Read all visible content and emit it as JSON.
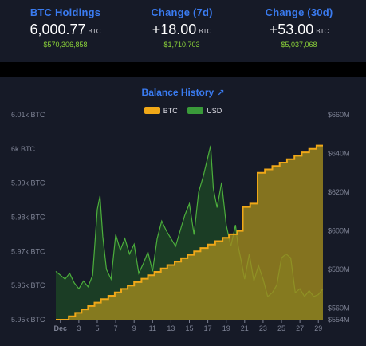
{
  "stats": [
    {
      "label": "BTC Holdings",
      "value": "6,000.77",
      "unit": "BTC",
      "usd": "$570,306,858"
    },
    {
      "label": "Change (7d)",
      "value": "+18.00",
      "unit": "BTC",
      "usd": "$1,710,703"
    },
    {
      "label": "Change (30d)",
      "value": "+53.00",
      "unit": "BTC",
      "usd": "$5,037,068"
    }
  ],
  "chart_data": {
    "type": "area",
    "title": "Balance History",
    "title_icon": "external-link-icon",
    "legend": [
      {
        "name": "BTC",
        "color": "#f0a818"
      },
      {
        "name": "USD",
        "color": "#3a9a3a"
      }
    ],
    "x_ticks": [
      "Dec",
      "3",
      "5",
      "7",
      "9",
      "11",
      "13",
      "15",
      "17",
      "19",
      "21",
      "23",
      "25",
      "27",
      "29"
    ],
    "x_tick_days": [
      1,
      3,
      5,
      7,
      9,
      11,
      13,
      15,
      17,
      19,
      21,
      23,
      25,
      27,
      29
    ],
    "x_range": [
      0.5,
      29.5
    ],
    "left_axis": {
      "ticks": [
        "6.01k BTC",
        "6k BTC",
        "5.99k BTC",
        "5.98k BTC",
        "5.97k BTC",
        "5.96k BTC",
        "5.95k BTC"
      ],
      "tick_values": [
        6010,
        6000,
        5990,
        5980,
        5970,
        5960,
        5950
      ],
      "range": [
        5950,
        6010
      ]
    },
    "right_axis": {
      "ticks": [
        "$660M",
        "$640M",
        "$620M",
        "$600M",
        "$580M",
        "$560M",
        "$554M"
      ],
      "tick_values": [
        660,
        640,
        620,
        600,
        580,
        560,
        554
      ],
      "range": [
        554,
        660
      ]
    },
    "series": [
      {
        "name": "BTC",
        "axis": "left",
        "color": "#f0a818",
        "fill": "#a08a1e",
        "points": [
          [
            0.5,
            5950
          ],
          [
            1.9,
            5950
          ],
          [
            1.9,
            5951
          ],
          [
            2.6,
            5951
          ],
          [
            2.6,
            5952
          ],
          [
            3.3,
            5952
          ],
          [
            3.3,
            5953
          ],
          [
            4.0,
            5953
          ],
          [
            4.0,
            5954
          ],
          [
            4.7,
            5954
          ],
          [
            4.7,
            5955
          ],
          [
            5.4,
            5955
          ],
          [
            5.4,
            5956
          ],
          [
            6.2,
            5956
          ],
          [
            6.2,
            5957
          ],
          [
            6.9,
            5957
          ],
          [
            6.9,
            5958
          ],
          [
            7.6,
            5958
          ],
          [
            7.6,
            5959
          ],
          [
            8.3,
            5959
          ],
          [
            8.3,
            5960
          ],
          [
            9.0,
            5960
          ],
          [
            9.0,
            5961
          ],
          [
            9.8,
            5961
          ],
          [
            9.8,
            5962
          ],
          [
            10.5,
            5962
          ],
          [
            10.5,
            5963
          ],
          [
            11.2,
            5963
          ],
          [
            11.2,
            5964
          ],
          [
            11.9,
            5964
          ],
          [
            11.9,
            5965
          ],
          [
            12.6,
            5965
          ],
          [
            12.6,
            5966
          ],
          [
            13.4,
            5966
          ],
          [
            13.4,
            5967
          ],
          [
            14.1,
            5967
          ],
          [
            14.1,
            5968
          ],
          [
            14.8,
            5968
          ],
          [
            14.8,
            5969
          ],
          [
            15.5,
            5969
          ],
          [
            15.5,
            5970
          ],
          [
            16.2,
            5970
          ],
          [
            16.2,
            5971
          ],
          [
            17.0,
            5971
          ],
          [
            17.0,
            5972
          ],
          [
            17.8,
            5972
          ],
          [
            17.8,
            5973
          ],
          [
            18.6,
            5973
          ],
          [
            18.6,
            5974
          ],
          [
            19.3,
            5974
          ],
          [
            19.3,
            5975
          ],
          [
            20.2,
            5975
          ],
          [
            20.2,
            5976
          ],
          [
            20.8,
            5976
          ],
          [
            20.8,
            5983
          ],
          [
            21.6,
            5983
          ],
          [
            21.6,
            5984
          ],
          [
            22.4,
            5984
          ],
          [
            22.4,
            5993
          ],
          [
            23.2,
            5993
          ],
          [
            23.2,
            5994
          ],
          [
            24.0,
            5994
          ],
          [
            24.0,
            5995
          ],
          [
            24.8,
            5995
          ],
          [
            24.8,
            5996
          ],
          [
            25.6,
            5996
          ],
          [
            25.6,
            5997
          ],
          [
            26.4,
            5997
          ],
          [
            26.4,
            5998
          ],
          [
            27.2,
            5998
          ],
          [
            27.2,
            5999
          ],
          [
            28.0,
            5999
          ],
          [
            28.0,
            6000
          ],
          [
            28.8,
            6000
          ],
          [
            28.8,
            6001
          ],
          [
            29.5,
            6001
          ]
        ]
      },
      {
        "name": "USD",
        "axis": "right",
        "color": "#4caf3c",
        "fill": "#1e4a26",
        "points": [
          [
            0.5,
            579
          ],
          [
            1.0,
            577
          ],
          [
            1.5,
            575
          ],
          [
            2.0,
            578
          ],
          [
            2.5,
            573
          ],
          [
            3.0,
            570
          ],
          [
            3.5,
            574
          ],
          [
            4.0,
            571
          ],
          [
            4.5,
            577
          ],
          [
            5.0,
            611
          ],
          [
            5.3,
            618
          ],
          [
            5.6,
            597
          ],
          [
            6.0,
            580
          ],
          [
            6.5,
            575
          ],
          [
            7.0,
            598
          ],
          [
            7.5,
            590
          ],
          [
            8.0,
            596
          ],
          [
            8.5,
            588
          ],
          [
            9.0,
            593
          ],
          [
            9.5,
            578
          ],
          [
            10.0,
            583
          ],
          [
            10.5,
            589
          ],
          [
            11.0,
            579
          ],
          [
            11.5,
            596
          ],
          [
            12.0,
            605
          ],
          [
            12.5,
            600
          ],
          [
            13.0,
            596
          ],
          [
            13.5,
            592
          ],
          [
            14.0,
            600
          ],
          [
            14.5,
            608
          ],
          [
            15.0,
            614
          ],
          [
            15.5,
            598
          ],
          [
            16.0,
            620
          ],
          [
            16.5,
            628
          ],
          [
            17.0,
            638
          ],
          [
            17.3,
            644
          ],
          [
            17.6,
            622
          ],
          [
            18.0,
            612
          ],
          [
            18.5,
            625
          ],
          [
            19.0,
            603
          ],
          [
            19.5,
            592
          ],
          [
            20.0,
            603
          ],
          [
            20.3,
            592
          ],
          [
            20.6,
            585
          ],
          [
            21.0,
            575
          ],
          [
            21.5,
            588
          ],
          [
            22.0,
            574
          ],
          [
            22.5,
            582
          ],
          [
            23.0,
            575
          ],
          [
            23.5,
            566
          ],
          [
            24.0,
            568
          ],
          [
            24.5,
            572
          ],
          [
            25.0,
            586
          ],
          [
            25.5,
            588
          ],
          [
            26.0,
            586
          ],
          [
            26.5,
            568
          ],
          [
            27.0,
            570
          ],
          [
            27.5,
            566
          ],
          [
            28.0,
            569
          ],
          [
            28.5,
            566
          ],
          [
            29.0,
            567
          ],
          [
            29.5,
            570
          ]
        ]
      }
    ]
  }
}
